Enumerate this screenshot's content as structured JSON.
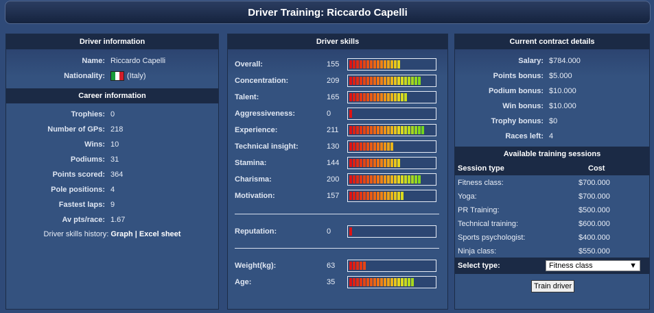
{
  "page_title": "Driver Training: Riccardo Capelli",
  "colors": {
    "bar_bg": "#2c4672",
    "panel_bg": "#34527f",
    "header_bg": "#1b2a45"
  },
  "driver_info": {
    "heading": "Driver information",
    "name_label": "Name:",
    "name_value": "Riccardo Capelli",
    "nationality_label": "Nationality:",
    "nationality_value": "(Italy)",
    "flag_icon": "italy-flag-icon"
  },
  "career": {
    "heading": "Career information",
    "rows": [
      {
        "label": "Trophies:",
        "value": "0"
      },
      {
        "label": "Number of GPs:",
        "value": "218"
      },
      {
        "label": "Wins:",
        "value": "10"
      },
      {
        "label": "Podiums:",
        "value": "31"
      },
      {
        "label": "Points scored:",
        "value": "364"
      },
      {
        "label": "Pole positions:",
        "value": "4"
      },
      {
        "label": "Fastest laps:",
        "value": "9"
      },
      {
        "label": "Av pts/race:",
        "value": "1.67"
      }
    ],
    "history_label": "Driver skills history:",
    "graph_link": "Graph",
    "separator": "|",
    "excel_link": "Excel sheet"
  },
  "skills": {
    "heading": "Driver skills",
    "rows": [
      {
        "label": "Overall:",
        "value": "155",
        "level": 0.61
      },
      {
        "label": "Concentration:",
        "value": "209",
        "level": 0.83
      },
      {
        "label": "Talent:",
        "value": "165",
        "level": 0.66
      },
      {
        "label": "Aggressiveness:",
        "value": "0",
        "level": 0.03
      },
      {
        "label": "Experience:",
        "value": "211",
        "level": 0.87
      },
      {
        "label": "Technical insight:",
        "value": "130",
        "level": 0.52
      },
      {
        "label": "Stamina:",
        "value": "144",
        "level": 0.59
      },
      {
        "label": "Charisma:",
        "value": "200",
        "level": 0.83
      },
      {
        "label": "Motivation:",
        "value": "157",
        "level": 0.62
      }
    ],
    "reputation": {
      "label": "Reputation:",
      "value": "0",
      "level": 0.03
    },
    "physical": [
      {
        "label": "Weight(kg):",
        "value": "63",
        "level": 0.19
      },
      {
        "label": "Age:",
        "value": "35",
        "level": 0.74
      }
    ]
  },
  "contract": {
    "heading": "Current contract details",
    "rows": [
      {
        "label": "Salary:",
        "value": "$784.000"
      },
      {
        "label": "Points bonus:",
        "value": "$5.000"
      },
      {
        "label": "Podium bonus:",
        "value": "$10.000"
      },
      {
        "label": "Win bonus:",
        "value": "$10.000"
      },
      {
        "label": "Trophy bonus:",
        "value": "$0"
      },
      {
        "label": "Races left:",
        "value": "4"
      }
    ]
  },
  "training": {
    "heading": "Available training sessions",
    "col_type": "Session type",
    "col_cost": "Cost",
    "sessions": [
      {
        "type": "Fitness class:",
        "cost": "$700.000"
      },
      {
        "type": "Yoga:",
        "cost": "$700.000"
      },
      {
        "type": "PR Training:",
        "cost": "$500.000"
      },
      {
        "type": "Technical training:",
        "cost": "$600.000"
      },
      {
        "type": "Sports psychologist:",
        "cost": "$400.000"
      },
      {
        "type": "Ninja class:",
        "cost": "$550.000"
      }
    ],
    "select_label": "Select type:",
    "select_value": "Fitness class",
    "button_label": "Train driver"
  }
}
